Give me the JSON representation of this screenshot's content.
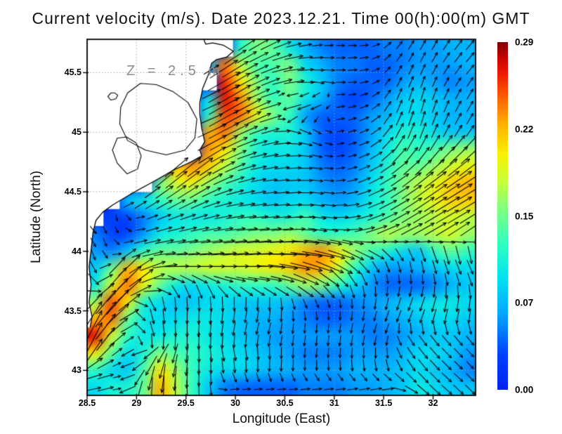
{
  "chart_data": {
    "type": "heatmap",
    "overlay": "vector-field",
    "title": "Current velocity (m/s). Date 2023.12.21. Time 00(h):00(m) GMT",
    "annotation": "Z = 2.5 m",
    "xlabel": "Longitude (East)",
    "ylabel": "Latitude (North)",
    "units": "m/s",
    "grid": true,
    "grid_color": "#9a9a9a",
    "arrow_color": "#000000",
    "land_color": "#ffffff",
    "xlim": [
      28.5,
      32.43
    ],
    "ylim": [
      42.79,
      45.78
    ],
    "x_tick_values": [
      28.5,
      29,
      29.5,
      30,
      30.5,
      31,
      31.5,
      32
    ],
    "x_tick_labels": [
      "28.5",
      "29",
      "29.5",
      "30",
      "30.5",
      "31",
      "31.5",
      "32"
    ],
    "y_tick_values": [
      45.5,
      45,
      44.5,
      44,
      43.5,
      43
    ],
    "y_tick_labels": [
      "45.5",
      "45",
      "44.5",
      "44",
      "43.5",
      "43"
    ],
    "colorbar": {
      "min": 0.0,
      "max": 0.29,
      "tick_labels": [
        "0.29",
        "0.22",
        "0.15",
        "0.07",
        "0.00"
      ]
    },
    "colormap": [
      [
        0.0,
        "#0222f0"
      ],
      [
        0.1,
        "#0040ff"
      ],
      [
        0.22,
        "#00a8ff"
      ],
      [
        0.32,
        "#00e0f0"
      ],
      [
        0.42,
        "#30ffc0"
      ],
      [
        0.52,
        "#80ff80"
      ],
      [
        0.6,
        "#c8ff38"
      ],
      [
        0.68,
        "#f8f000"
      ],
      [
        0.76,
        "#ffb400"
      ],
      [
        0.84,
        "#ff6000"
      ],
      [
        0.91,
        "#f01800"
      ],
      [
        0.96,
        "#c00000"
      ],
      [
        1.0,
        "#800000"
      ]
    ],
    "value_scale": 0.01,
    "land_marker": -1,
    "grid_cols": 24,
    "grid_rows": 21,
    "speed": [
      [
        -1,
        -1,
        -1,
        -1,
        -1,
        -1,
        -1,
        -1,
        -1,
        12,
        15,
        14,
        10,
        7,
        5,
        4,
        4,
        4,
        5,
        5,
        6,
        6,
        7,
        7
      ],
      [
        -1,
        -1,
        -1,
        -1,
        -1,
        -1,
        -1,
        8,
        24,
        17,
        13,
        13,
        15,
        9,
        7,
        5,
        5,
        4,
        4,
        5,
        6,
        6,
        6,
        7
      ],
      [
        -1,
        -1,
        -1,
        -1,
        -1,
        -1,
        -1,
        -1,
        26,
        20,
        15,
        12,
        15,
        11,
        8,
        5,
        4,
        4,
        4,
        6,
        7,
        6,
        5,
        6
      ],
      [
        -1,
        -1,
        -1,
        -1,
        -1,
        -1,
        -1,
        10,
        27,
        23,
        16,
        12,
        14,
        10,
        7,
        4,
        3,
        4,
        6,
        8,
        9,
        8,
        7,
        7
      ],
      [
        -1,
        -1,
        -1,
        -1,
        -1,
        -1,
        -1,
        12,
        25,
        24,
        19,
        15,
        12,
        6,
        4,
        4,
        4,
        6,
        7,
        9,
        9,
        8,
        7,
        7
      ],
      [
        -1,
        -1,
        -1,
        -1,
        -1,
        -1,
        -1,
        22,
        24,
        16,
        12,
        11,
        11,
        8,
        4,
        3,
        4,
        6,
        9,
        11,
        11,
        9,
        8,
        8
      ],
      [
        -1,
        -1,
        -1,
        -1,
        -1,
        -1,
        -1,
        23,
        20,
        15,
        11,
        10,
        10,
        8,
        4,
        3,
        4,
        7,
        10,
        13,
        12,
        13,
        15,
        16
      ],
      [
        -1,
        -1,
        -1,
        -1,
        -1,
        21,
        23,
        21,
        17,
        13,
        10,
        9,
        9,
        8,
        5,
        4,
        5,
        8,
        11,
        14,
        14,
        16,
        18,
        19
      ],
      [
        -1,
        -1,
        -1,
        -1,
        15,
        18,
        19,
        16,
        13,
        11,
        9,
        8,
        8,
        8,
        6,
        5,
        6,
        9,
        12,
        15,
        17,
        19,
        21,
        22
      ],
      [
        -1,
        -1,
        8,
        10,
        12,
        14,
        14,
        12,
        11,
        10,
        9,
        8,
        9,
        9,
        7,
        6,
        7,
        10,
        12,
        15,
        17,
        19,
        21,
        21
      ],
      [
        -1,
        3,
        3,
        5,
        8,
        10,
        10,
        10,
        11,
        12,
        12,
        11,
        11,
        13,
        10,
        9,
        10,
        11,
        13,
        15,
        16,
        17,
        18,
        17
      ],
      [
        5,
        3,
        3,
        6,
        10,
        11,
        12,
        13,
        13,
        14,
        15,
        15,
        16,
        14,
        12,
        12,
        13,
        15,
        17,
        16,
        16,
        17,
        18,
        16
      ],
      [
        6,
        5,
        8,
        12,
        14,
        14,
        15,
        16,
        17,
        18,
        18,
        19,
        20,
        22,
        23,
        20,
        16,
        13,
        11,
        9,
        8,
        12,
        14,
        12
      ],
      [
        8,
        14,
        22,
        20,
        17,
        17,
        17,
        18,
        18,
        18,
        19,
        20,
        21,
        23,
        22,
        18,
        12,
        8,
        6,
        6,
        7,
        8,
        9,
        9
      ],
      [
        10,
        18,
        24,
        19,
        14,
        10,
        9,
        10,
        11,
        12,
        12,
        12,
        14,
        16,
        15,
        12,
        9,
        6,
        4,
        4,
        4,
        5,
        7,
        8
      ],
      [
        16,
        25,
        20,
        11,
        9,
        8,
        8,
        9,
        9,
        8,
        8,
        8,
        7,
        5,
        4,
        4,
        5,
        6,
        7,
        8,
        9,
        10,
        10,
        9
      ],
      [
        22,
        24,
        14,
        10,
        9,
        9,
        10,
        10,
        9,
        8,
        7,
        7,
        6,
        5,
        4,
        4,
        5,
        5,
        6,
        7,
        8,
        9,
        9,
        8
      ],
      [
        27,
        18,
        12,
        10,
        10,
        11,
        11,
        10,
        9,
        8,
        7,
        6,
        6,
        6,
        6,
        6,
        6,
        5,
        5,
        6,
        7,
        8,
        8,
        7
      ],
      [
        20,
        14,
        9,
        11,
        15,
        13,
        12,
        11,
        10,
        9,
        8,
        7,
        6,
        5,
        5,
        5,
        6,
        6,
        6,
        7,
        9,
        9,
        8,
        6
      ],
      [
        12,
        9,
        8,
        13,
        20,
        16,
        12,
        10,
        9,
        9,
        8,
        7,
        7,
        6,
        6,
        6,
        7,
        7,
        7,
        8,
        9,
        8,
        7,
        5
      ],
      [
        9,
        11,
        11,
        14,
        22,
        17,
        12,
        8,
        5,
        4,
        4,
        4,
        4,
        5,
        5,
        5,
        6,
        6,
        7,
        8,
        10,
        9,
        8,
        8
      ]
    ],
    "dir_deg": [
      [
        0,
        0,
        0,
        0,
        0,
        0,
        0,
        0,
        0,
        35,
        30,
        25,
        15,
        10,
        5,
        0,
        0,
        10,
        40,
        55,
        60,
        60,
        55,
        50
      ],
      [
        0,
        0,
        0,
        0,
        0,
        0,
        0,
        30,
        35,
        30,
        25,
        20,
        10,
        5,
        0,
        0,
        5,
        10,
        45,
        60,
        65,
        60,
        55,
        50
      ],
      [
        0,
        0,
        0,
        0,
        0,
        0,
        0,
        0,
        30,
        30,
        25,
        20,
        10,
        0,
        350,
        0,
        5,
        15,
        50,
        65,
        70,
        65,
        60,
        55
      ],
      [
        0,
        0,
        0,
        0,
        0,
        0,
        0,
        25,
        30,
        30,
        25,
        15,
        190,
        195,
        200,
        5,
        10,
        20,
        55,
        70,
        75,
        70,
        65,
        60
      ],
      [
        0,
        0,
        0,
        0,
        0,
        0,
        0,
        20,
        30,
        28,
        25,
        15,
        200,
        210,
        220,
        10,
        15,
        25,
        55,
        70,
        75,
        70,
        65,
        60
      ],
      [
        0,
        0,
        0,
        0,
        0,
        0,
        0,
        25,
        28,
        25,
        20,
        15,
        350,
        340,
        330,
        10,
        15,
        25,
        50,
        65,
        70,
        65,
        60,
        55
      ],
      [
        0,
        0,
        0,
        0,
        0,
        0,
        0,
        30,
        28,
        22,
        15,
        10,
        5,
        350,
        340,
        10,
        15,
        25,
        45,
        55,
        60,
        55,
        50,
        45
      ],
      [
        0,
        0,
        0,
        0,
        0,
        40,
        38,
        35,
        28,
        20,
        12,
        8,
        5,
        0,
        350,
        5,
        15,
        25,
        35,
        40,
        45,
        42,
        40,
        38
      ],
      [
        0,
        0,
        0,
        0,
        40,
        38,
        35,
        30,
        22,
        15,
        10,
        5,
        5,
        0,
        350,
        5,
        15,
        25,
        30,
        35,
        38,
        36,
        34,
        32
      ],
      [
        0,
        0,
        35,
        35,
        32,
        30,
        28,
        22,
        15,
        10,
        8,
        5,
        5,
        0,
        350,
        0,
        10,
        20,
        28,
        32,
        35,
        33,
        31,
        30
      ],
      [
        0,
        270,
        310,
        20,
        22,
        20,
        18,
        15,
        10,
        8,
        5,
        5,
        5,
        0,
        350,
        0,
        10,
        18,
        25,
        30,
        32,
        31,
        30,
        32
      ],
      [
        310,
        290,
        330,
        15,
        15,
        12,
        10,
        8,
        8,
        5,
        5,
        5,
        5,
        355,
        350,
        355,
        5,
        15,
        22,
        25,
        28,
        30,
        32,
        35
      ],
      [
        290,
        285,
        30,
        15,
        8,
        5,
        5,
        5,
        5,
        5,
        5,
        0,
        0,
        355,
        350,
        345,
        335,
        340,
        320,
        300,
        292,
        290,
        285,
        280
      ],
      [
        300,
        50,
        45,
        30,
        10,
        0,
        0,
        0,
        0,
        0,
        0,
        355,
        350,
        345,
        340,
        330,
        315,
        300,
        285,
        280,
        278,
        285,
        290,
        295
      ],
      [
        320,
        50,
        45,
        35,
        0,
        310,
        300,
        305,
        330,
        340,
        345,
        345,
        340,
        330,
        320,
        305,
        290,
        280,
        272,
        268,
        265,
        275,
        280,
        285
      ],
      [
        45,
        52,
        40,
        310,
        285,
        275,
        272,
        275,
        272,
        270,
        268,
        270,
        285,
        295,
        295,
        280,
        272,
        265,
        258,
        252,
        250,
        255,
        260,
        265
      ],
      [
        60,
        45,
        30,
        285,
        275,
        270,
        268,
        265,
        262,
        260,
        258,
        262,
        268,
        272,
        270,
        265,
        260,
        255,
        250,
        248,
        250,
        255,
        258,
        260
      ],
      [
        65,
        42,
        35,
        300,
        282,
        272,
        268,
        265,
        262,
        260,
        258,
        258,
        260,
        262,
        264,
        262,
        258,
        255,
        252,
        300,
        305,
        308,
        310,
        308
      ],
      [
        55,
        35,
        210,
        195,
        235,
        255,
        268,
        275,
        282,
        280,
        275,
        270,
        268,
        266,
        265,
        266,
        268,
        270,
        272,
        300,
        308,
        312,
        315,
        312
      ],
      [
        20,
        15,
        195,
        230,
        258,
        262,
        266,
        270,
        274,
        270,
        268,
        266,
        268,
        270,
        272,
        275,
        278,
        280,
        285,
        300,
        308,
        314,
        316,
        314
      ],
      [
        12,
        15,
        200,
        265,
        268,
        270,
        272,
        270,
        5,
        5,
        5,
        5,
        5,
        6,
        6,
        6,
        8,
        8,
        10,
        340,
        320,
        316,
        318,
        315
      ]
    ],
    "coastline": [
      [
        29.68,
        45.78
      ],
      [
        29.7,
        45.74
      ],
      [
        29.77,
        45.75
      ],
      [
        29.88,
        45.73
      ],
      [
        29.98,
        45.68
      ],
      [
        29.91,
        45.63
      ],
      [
        29.81,
        45.61
      ],
      [
        29.76,
        45.58
      ],
      [
        29.73,
        45.49
      ],
      [
        29.67,
        45.37
      ],
      [
        29.64,
        45.25
      ],
      [
        29.64,
        45.15
      ],
      [
        29.66,
        45.03
      ],
      [
        29.69,
        44.92
      ],
      [
        29.64,
        44.85
      ],
      [
        29.66,
        44.8
      ],
      [
        29.55,
        44.75
      ],
      [
        29.37,
        44.68
      ],
      [
        29.16,
        44.58
      ],
      [
        28.94,
        44.48
      ],
      [
        28.76,
        44.39
      ],
      [
        28.66,
        44.33
      ],
      [
        28.59,
        44.26
      ],
      [
        28.56,
        44.16
      ],
      [
        28.54,
        44.01
      ],
      [
        28.52,
        43.87
      ],
      [
        28.54,
        43.72
      ],
      [
        28.52,
        43.57
      ],
      [
        28.55,
        43.45
      ],
      [
        28.53,
        43.36
      ]
    ],
    "lakes": [
      [
        [
          29.04,
          45.41
        ],
        [
          28.91,
          45.33
        ],
        [
          28.84,
          45.21
        ],
        [
          28.83,
          45.07
        ],
        [
          28.91,
          44.93
        ],
        [
          29.09,
          44.85
        ],
        [
          29.3,
          44.81
        ],
        [
          29.49,
          44.85
        ],
        [
          29.59,
          44.95
        ],
        [
          29.61,
          45.11
        ],
        [
          29.52,
          45.25
        ],
        [
          29.37,
          45.34
        ],
        [
          29.2,
          45.4
        ]
      ],
      [
        [
          28.805,
          44.95
        ],
        [
          28.756,
          44.85
        ],
        [
          28.805,
          44.74
        ],
        [
          28.905,
          44.65
        ],
        [
          29.01,
          44.69
        ],
        [
          29.047,
          44.8
        ],
        [
          28.997,
          44.91
        ],
        [
          28.898,
          44.96
        ]
      ],
      [
        [
          28.74,
          45.33
        ],
        [
          28.71,
          45.3
        ],
        [
          28.74,
          45.27
        ],
        [
          28.79,
          45.28
        ],
        [
          28.81,
          45.31
        ],
        [
          28.78,
          45.33
        ]
      ]
    ]
  }
}
